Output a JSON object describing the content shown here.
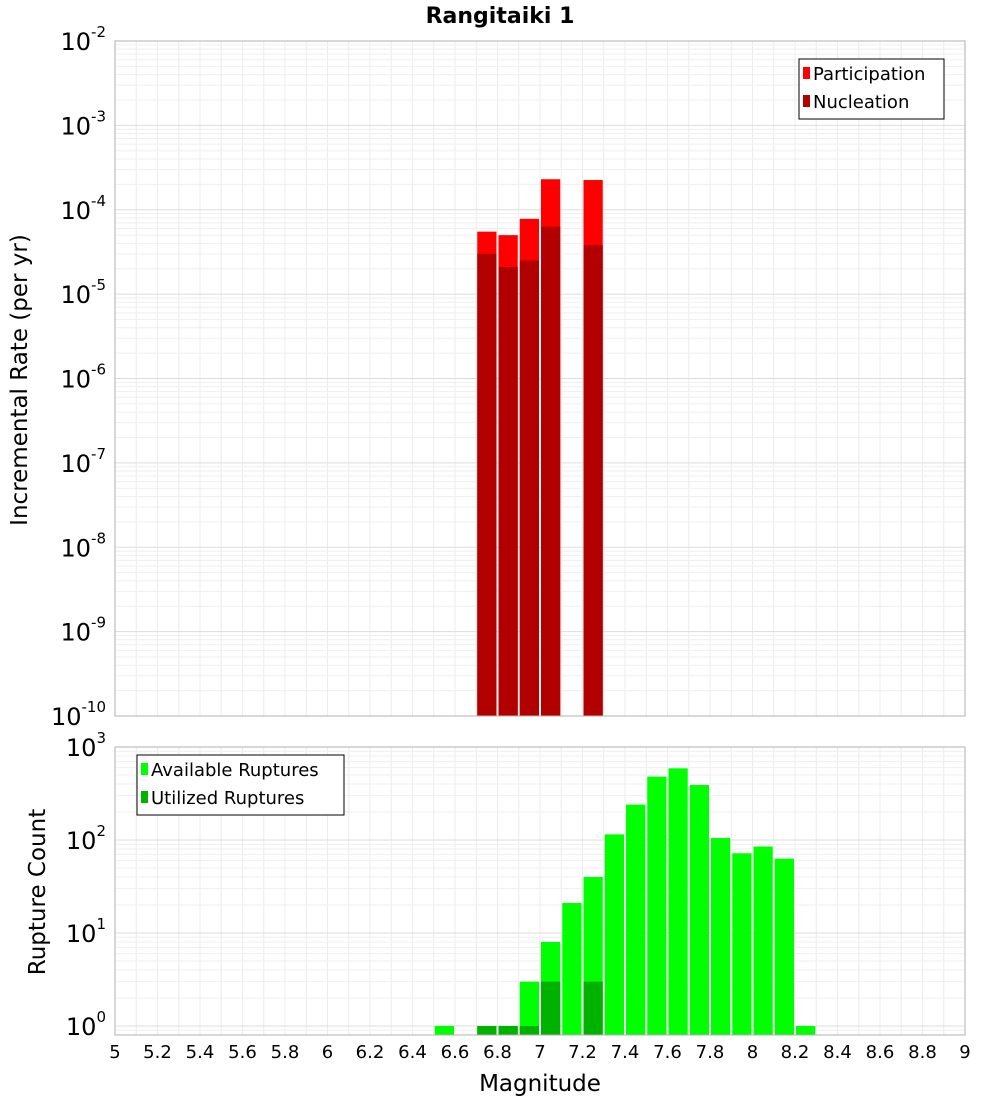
{
  "chart_data": [
    {
      "type": "bar",
      "title": "Rangitaiki 1",
      "ylabel": "Incremental Rate (per yr)",
      "yscale": "log",
      "ylim": [
        1e-10,
        0.01
      ],
      "xlim": [
        5,
        9
      ],
      "grid": true,
      "legend_position": "top-right",
      "bar_width": 0.1,
      "series": [
        {
          "name": "Participation",
          "color": "#ff0000",
          "x": [
            6.75,
            6.85,
            6.95,
            7.05,
            7.25
          ],
          "values": [
            5.5e-05,
            5e-05,
            7.8e-05,
            0.00023,
            0.000225
          ]
        },
        {
          "name": "Nucleation",
          "color": "#b20000",
          "x": [
            6.75,
            6.85,
            6.95,
            7.05,
            7.25
          ],
          "values": [
            3e-05,
            2.1e-05,
            2.5e-05,
            6.3e-05,
            3.8e-05
          ]
        }
      ],
      "ytick_exponents": [
        -10,
        -9,
        -8,
        -7,
        -6,
        -5,
        -4,
        -3,
        -2
      ]
    },
    {
      "type": "bar",
      "xlabel": "Magnitude",
      "ylabel": "Rupture Count",
      "yscale": "log",
      "ylim": [
        0.8,
        1000
      ],
      "xlim": [
        5,
        9
      ],
      "grid": true,
      "legend_position": "top-left",
      "bar_width": 0.1,
      "series": [
        {
          "name": "Available Ruptures",
          "color": "#00ff00",
          "x": [
            6.55,
            6.75,
            6.85,
            6.95,
            7.05,
            7.15,
            7.25,
            7.35,
            7.45,
            7.55,
            7.65,
            7.75,
            7.85,
            7.95,
            8.05,
            8.15,
            8.25
          ],
          "values": [
            1,
            1,
            1,
            3,
            8,
            21,
            40,
            115,
            240,
            480,
            590,
            390,
            105,
            72,
            85,
            63,
            1
          ]
        },
        {
          "name": "Utilized Ruptures",
          "color": "#00b200",
          "x": [
            6.75,
            6.85,
            6.95,
            7.05,
            7.25
          ],
          "values": [
            1,
            1,
            1,
            3,
            3
          ]
        }
      ],
      "ytick_exponents": [
        0,
        1,
        2,
        3
      ],
      "xticks": [
        "5",
        "5.2",
        "5.4",
        "5.6",
        "5.8",
        "6",
        "6.2",
        "6.4",
        "6.6",
        "6.8",
        "7",
        "7.2",
        "7.4",
        "7.6",
        "7.8",
        "8",
        "8.2",
        "8.4",
        "8.6",
        "8.8",
        "9"
      ]
    }
  ]
}
